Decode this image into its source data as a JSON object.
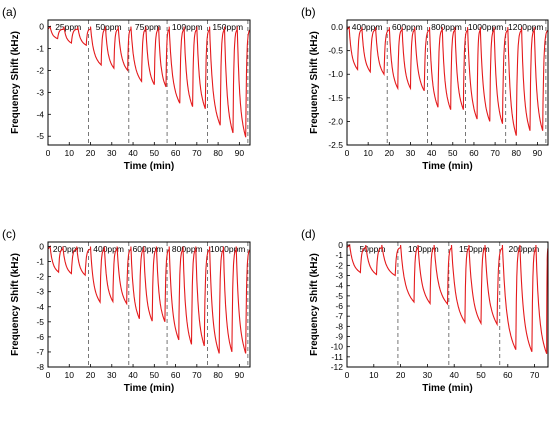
{
  "colors": {
    "series": "#e41a1c",
    "axis": "#000000",
    "divider": "#555555"
  },
  "chart_data": [
    {
      "type": "line",
      "panel_label": "(a)",
      "xlabel": "Time (min)",
      "ylabel": "Frequency Shift (kHz)",
      "xlim": [
        0,
        95
      ],
      "ylim": [
        -5.4,
        0.3
      ],
      "xticks": [
        0,
        10,
        20,
        30,
        40,
        50,
        60,
        70,
        80,
        90
      ],
      "yticks": [
        0,
        -1,
        -2,
        -3,
        -4,
        -5
      ],
      "dividers": [
        19,
        38,
        56,
        75,
        94
      ],
      "concentrations": [
        "25ppm",
        "50ppm",
        "75ppm",
        "100ppm",
        "150ppm"
      ],
      "cycles": [
        {
          "start": 1,
          "end": 4.5,
          "min": -0.55
        },
        {
          "start": 7.5,
          "end": 11,
          "min": -0.75
        },
        {
          "start": 14,
          "end": 18,
          "min": -0.85
        },
        {
          "start": 20,
          "end": 25,
          "min": -1.75
        },
        {
          "start": 27,
          "end": 31,
          "min": -1.9
        },
        {
          "start": 33,
          "end": 37.5,
          "min": -2.0
        },
        {
          "start": 39,
          "end": 44,
          "min": -2.5
        },
        {
          "start": 46,
          "end": 50,
          "min": -2.65
        },
        {
          "start": 52,
          "end": 55.5,
          "min": -2.75
        },
        {
          "start": 57,
          "end": 62,
          "min": -3.5
        },
        {
          "start": 64,
          "end": 68,
          "min": -3.65
        },
        {
          "start": 70,
          "end": 74,
          "min": -3.75
        },
        {
          "start": 76,
          "end": 81,
          "min": -4.5
        },
        {
          "start": 83,
          "end": 87,
          "min": -4.85
        },
        {
          "start": 89,
          "end": 93,
          "min": -5.05
        }
      ]
    },
    {
      "type": "line",
      "panel_label": "(b)",
      "xlabel": "Time (min)",
      "ylabel": "Frequency Shift (kHz)",
      "xlim": [
        0,
        95
      ],
      "ylim": [
        -2.5,
        0.15
      ],
      "xticks": [
        0,
        10,
        20,
        30,
        40,
        50,
        60,
        70,
        80,
        90
      ],
      "yticks": [
        0.0,
        -0.5,
        -1.0,
        -1.5,
        -2.0,
        -2.5
      ],
      "ytick_labels": [
        "0.0",
        "-0.5",
        "-1.0",
        "-1.5",
        "-2.0",
        "-2.5"
      ],
      "dividers": [
        19,
        38,
        56,
        75,
        94
      ],
      "concentrations": [
        "400ppm",
        "600ppm",
        "800ppm",
        "1000ppm",
        "1200ppm"
      ],
      "cycles": [
        {
          "start": 1,
          "end": 5,
          "min": -0.9
        },
        {
          "start": 7,
          "end": 11,
          "min": -0.95
        },
        {
          "start": 13.5,
          "end": 17.5,
          "min": -1.0
        },
        {
          "start": 20,
          "end": 24,
          "min": -1.3
        },
        {
          "start": 26,
          "end": 30,
          "min": -1.3
        },
        {
          "start": 32,
          "end": 36.5,
          "min": -1.35
        },
        {
          "start": 39,
          "end": 43,
          "min": -1.7
        },
        {
          "start": 45,
          "end": 49,
          "min": -1.75
        },
        {
          "start": 51,
          "end": 55,
          "min": -1.75
        },
        {
          "start": 57,
          "end": 61.5,
          "min": -1.95
        },
        {
          "start": 63,
          "end": 67.5,
          "min": -2.0
        },
        {
          "start": 69.5,
          "end": 73.5,
          "min": -2.05
        },
        {
          "start": 76,
          "end": 80,
          "min": -2.3
        },
        {
          "start": 82.5,
          "end": 86.5,
          "min": -2.2
        },
        {
          "start": 88.5,
          "end": 92.5,
          "min": -2.2
        }
      ]
    },
    {
      "type": "line",
      "panel_label": "(c)",
      "xlabel": "Time (min)",
      "ylabel": "Frequency Shift (kHz)",
      "xlim": [
        0,
        95
      ],
      "ylim": [
        -8,
        0.3
      ],
      "xticks": [
        0,
        10,
        20,
        30,
        40,
        50,
        60,
        70,
        80,
        90
      ],
      "yticks": [
        0,
        -1,
        -2,
        -3,
        -4,
        -5,
        -6,
        -7,
        -8
      ],
      "dividers": [
        19,
        38,
        56,
        75,
        94
      ],
      "concentrations": [
        "200ppm",
        "400ppm",
        "600ppm",
        "800ppm",
        "1000ppm"
      ],
      "cycles": [
        {
          "start": 1,
          "end": 5,
          "min": -1.7
        },
        {
          "start": 7,
          "end": 11,
          "min": -1.8
        },
        {
          "start": 13.5,
          "end": 17.5,
          "min": -1.9
        },
        {
          "start": 20,
          "end": 24.5,
          "min": -3.7
        },
        {
          "start": 26.5,
          "end": 30.5,
          "min": -3.65
        },
        {
          "start": 32.5,
          "end": 37,
          "min": -3.8
        },
        {
          "start": 39,
          "end": 43,
          "min": -4.8
        },
        {
          "start": 45,
          "end": 49,
          "min": -4.95
        },
        {
          "start": 51,
          "end": 55,
          "min": -5.0
        },
        {
          "start": 57,
          "end": 61.5,
          "min": -6.2
        },
        {
          "start": 63.5,
          "end": 67.5,
          "min": -6.5
        },
        {
          "start": 69.5,
          "end": 73.5,
          "min": -6.6
        },
        {
          "start": 76,
          "end": 80.5,
          "min": -7.1
        },
        {
          "start": 82.5,
          "end": 86.5,
          "min": -7.0
        },
        {
          "start": 88.5,
          "end": 93,
          "min": -7.1
        }
      ]
    },
    {
      "type": "line",
      "panel_label": "(d)",
      "xlabel": "Time (min)",
      "ylabel": "Frequency Shift (kHz)",
      "xlim": [
        0,
        75
      ],
      "ylim": [
        -12,
        0.3
      ],
      "xticks": [
        0,
        10,
        20,
        30,
        40,
        50,
        60,
        70
      ],
      "yticks": [
        0,
        -1,
        -2,
        -3,
        -4,
        -5,
        -6,
        -7,
        -8,
        -9,
        -10,
        -11,
        -12
      ],
      "dividers": [
        19,
        38,
        57
      ],
      "concentrations": [
        "50ppm",
        "100ppm",
        "150ppm",
        "200ppm"
      ],
      "cycles": [
        {
          "start": 1,
          "end": 5,
          "min": -2.7
        },
        {
          "start": 7,
          "end": 11,
          "min": -2.9
        },
        {
          "start": 13,
          "end": 18,
          "min": -3.0
        },
        {
          "start": 20,
          "end": 25,
          "min": -5.6
        },
        {
          "start": 26.5,
          "end": 31,
          "min": -5.75
        },
        {
          "start": 32.5,
          "end": 37.5,
          "min": -5.8
        },
        {
          "start": 39,
          "end": 44,
          "min": -7.6
        },
        {
          "start": 45.5,
          "end": 50,
          "min": -7.7
        },
        {
          "start": 51.5,
          "end": 56,
          "min": -7.8
        },
        {
          "start": 58,
          "end": 63,
          "min": -10.3
        },
        {
          "start": 64.5,
          "end": 69,
          "min": -10.5
        },
        {
          "start": 70.5,
          "end": 74.5,
          "min": -10.7
        }
      ]
    }
  ]
}
